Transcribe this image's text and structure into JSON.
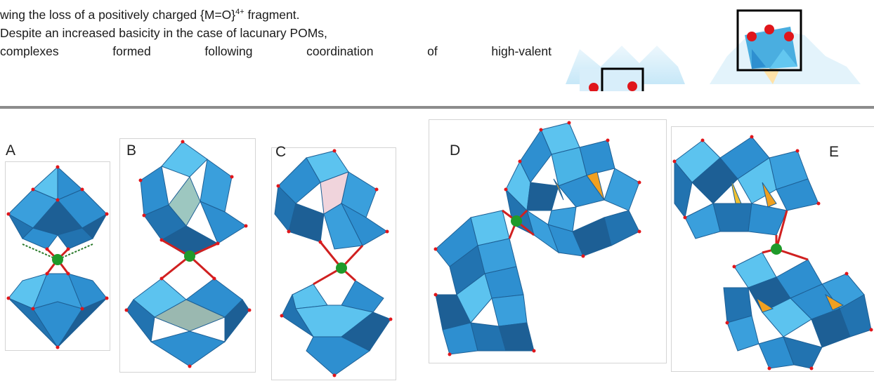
{
  "text": {
    "line1_pre": "wing the loss of a positively charged {M=O}",
    "line1_sup": "4+",
    "line1_post": " fragment.",
    "line2": "Despite an increased basicity in the case of lacunary POMs,",
    "line3": "complexes formed following coordination of high-valent"
  },
  "figure": {
    "labels": [
      "A",
      "B",
      "C",
      "D",
      "E"
    ]
  },
  "colors": {
    "polyhedron": "#2e8fd0",
    "polyhedron_light": "#5cc3ef",
    "polyhedron_dark": "#1d5f95",
    "oxygen": "#e0161b",
    "metal_center": "#1f9a2a",
    "heteroatom": "#f0a020",
    "divider": "#8c8c8c"
  }
}
